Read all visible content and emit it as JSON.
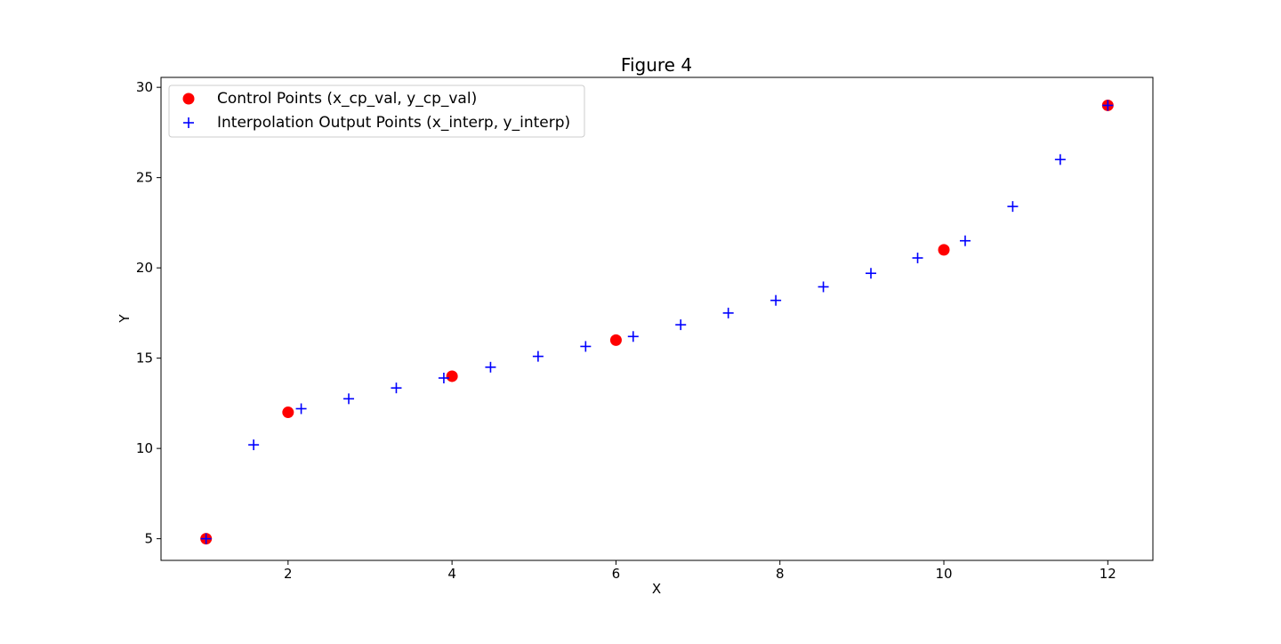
{
  "chart_data": {
    "type": "scatter",
    "title": "Figure 4",
    "xlabel": "X",
    "ylabel": "Y",
    "xlim": [
      0.45,
      12.55
    ],
    "ylim": [
      3.8,
      30.55
    ],
    "xticks": [
      2,
      4,
      6,
      8,
      10,
      12
    ],
    "xtick_labels": [
      "2",
      "4",
      "6",
      "8",
      "10",
      "12"
    ],
    "yticks": [
      5,
      10,
      15,
      20,
      25,
      30
    ],
    "ytick_labels": [
      "5",
      "10",
      "15",
      "20",
      "25",
      "30"
    ],
    "grid": false,
    "legend_position": "top-left",
    "series": [
      {
        "name": "Control Points (x_cp_val, y_cp_val)",
        "marker": "circle",
        "color": "#ff0000",
        "x": [
          1,
          2,
          4,
          6,
          10,
          12
        ],
        "y": [
          5,
          12,
          14,
          16,
          21,
          29
        ]
      },
      {
        "name": "Interpolation Output Points (x_interp, y_interp)",
        "marker": "plus",
        "color": "#0000ff",
        "x": [
          1.0,
          1.58,
          2.16,
          2.74,
          3.32,
          3.9,
          4.47,
          5.05,
          5.63,
          6.21,
          6.79,
          7.37,
          7.95,
          8.53,
          9.11,
          9.68,
          10.26,
          10.84,
          11.42,
          12.0
        ],
        "y": [
          5.0,
          10.2,
          12.2,
          12.75,
          13.35,
          13.9,
          14.5,
          15.1,
          15.65,
          16.2,
          16.85,
          17.5,
          18.2,
          18.95,
          19.7,
          20.55,
          21.5,
          23.4,
          26.0,
          29.0
        ]
      }
    ]
  }
}
